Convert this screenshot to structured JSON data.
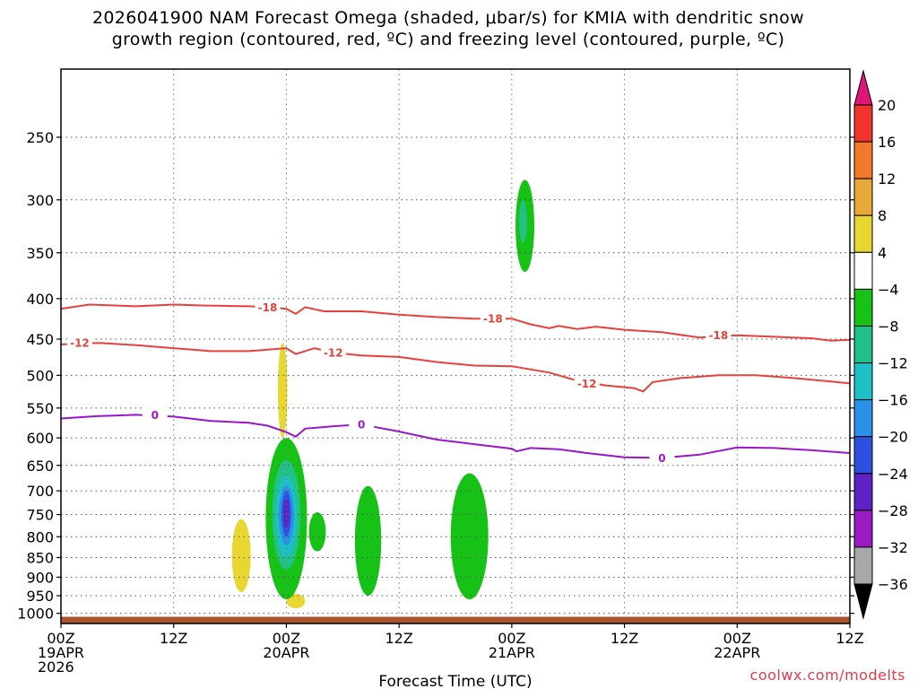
{
  "title_lines": [
    "2026041900 NAM Forecast Omega (shaded, μbar/s) for KMIA with dendritic snow",
    "growth region (contoured, red, ºC) and freezing level (contoured, purple, ºC)"
  ],
  "credit": "coolwx.com/modelts",
  "chart_data": {
    "type": "contour",
    "xlabel": "Forecast Time (UTC)",
    "x_ticks": [
      {
        "hour": 0,
        "lines": [
          "00Z",
          "19APR",
          "2026"
        ]
      },
      {
        "hour": 12,
        "lines": [
          "12Z"
        ]
      },
      {
        "hour": 24,
        "lines": [
          "00Z",
          "20APR"
        ]
      },
      {
        "hour": 36,
        "lines": [
          "12Z"
        ]
      },
      {
        "hour": 48,
        "lines": [
          "00Z",
          "21APR"
        ]
      },
      {
        "hour": 60,
        "lines": [
          "12Z"
        ]
      },
      {
        "hour": 72,
        "lines": [
          "00Z",
          "22APR"
        ]
      },
      {
        "hour": 84,
        "lines": [
          "12Z"
        ]
      }
    ],
    "xlim": [
      0,
      84
    ],
    "ylabel": "",
    "y_ticks": [
      250,
      300,
      350,
      400,
      450,
      500,
      550,
      600,
      650,
      700,
      750,
      800,
      850,
      900,
      950,
      1000
    ],
    "ylim": [
      1030,
      205
    ],
    "y_scale": "log-pressure",
    "grid": true,
    "colorbar": {
      "labels": [
        20,
        16,
        12,
        8,
        4,
        -4,
        -8,
        -12,
        -16,
        -20,
        -24,
        -28,
        -32,
        -36
      ],
      "colors": [
        "#e0157a",
        "#f0352e",
        "#f2792a",
        "#e8a93a",
        "#e8d730",
        "#ffffff",
        "#16c216",
        "#22c08a",
        "#1ec0c8",
        "#2a90ea",
        "#2f4fe0",
        "#5e22c4",
        "#9a1ac4",
        "#a8a8a8",
        "#000000"
      ]
    },
    "contours": [
      {
        "label": "-18",
        "color": "#e8403a",
        "points": [
          [
            0,
            412
          ],
          [
            3,
            407
          ],
          [
            8,
            409
          ],
          [
            12,
            407
          ],
          [
            15,
            408
          ],
          [
            20,
            409
          ],
          [
            22,
            410
          ],
          [
            24,
            412
          ],
          [
            25,
            418
          ],
          [
            26,
            410
          ],
          [
            28,
            415
          ],
          [
            32,
            415
          ],
          [
            36,
            419
          ],
          [
            40,
            422
          ],
          [
            44,
            424
          ],
          [
            48,
            424
          ],
          [
            50,
            431
          ],
          [
            52,
            436
          ],
          [
            53,
            433
          ],
          [
            55,
            437
          ],
          [
            57,
            434
          ],
          [
            60,
            438
          ],
          [
            64,
            441
          ],
          [
            68,
            448
          ],
          [
            72,
            445
          ],
          [
            76,
            447
          ],
          [
            80,
            449
          ],
          [
            82,
            452
          ],
          [
            84,
            451
          ]
        ],
        "label_at": [
          [
            22,
            410
          ],
          [
            46,
            424
          ],
          [
            70,
            445
          ]
        ]
      },
      {
        "label": "-12",
        "color": "#e8403a",
        "points": [
          [
            0,
            457
          ],
          [
            4,
            455
          ],
          [
            8,
            458
          ],
          [
            12,
            462
          ],
          [
            16,
            466
          ],
          [
            20,
            466
          ],
          [
            24,
            462
          ],
          [
            25,
            470
          ],
          [
            27,
            462
          ],
          [
            29,
            468
          ],
          [
            32,
            472
          ],
          [
            36,
            474
          ],
          [
            40,
            481
          ],
          [
            44,
            486
          ],
          [
            48,
            487
          ],
          [
            52,
            496
          ],
          [
            55,
            508
          ],
          [
            58,
            515
          ],
          [
            61,
            519
          ],
          [
            62,
            524
          ],
          [
            63,
            510
          ],
          [
            66,
            504
          ],
          [
            70,
            500
          ],
          [
            74,
            500
          ],
          [
            78,
            504
          ],
          [
            82,
            509
          ],
          [
            84,
            512
          ]
        ],
        "label_at": [
          [
            2,
            455
          ],
          [
            29,
            468
          ],
          [
            56,
            512
          ]
        ]
      },
      {
        "label": "0",
        "color": "#9a16c8",
        "points": [
          [
            0,
            567
          ],
          [
            4,
            563
          ],
          [
            8,
            561
          ],
          [
            12,
            564
          ],
          [
            16,
            571
          ],
          [
            20,
            574
          ],
          [
            22,
            579
          ],
          [
            24,
            590
          ],
          [
            25,
            598
          ],
          [
            26,
            584
          ],
          [
            29,
            580
          ],
          [
            32,
            577
          ],
          [
            36,
            589
          ],
          [
            40,
            603
          ],
          [
            44,
            611
          ],
          [
            48,
            619
          ],
          [
            48.5,
            624
          ],
          [
            50,
            618
          ],
          [
            53,
            620
          ],
          [
            56,
            627
          ],
          [
            60,
            635
          ],
          [
            64,
            636
          ],
          [
            68,
            630
          ],
          [
            72,
            617
          ],
          [
            76,
            618
          ],
          [
            80,
            622
          ],
          [
            84,
            627
          ]
        ],
        "label_at": [
          [
            10,
            561
          ],
          [
            32,
            577
          ],
          [
            64,
            636
          ]
        ]
      }
    ],
    "shaded_regions": [
      {
        "center": [
          23.6,
          520
        ],
        "rx_hours": 0.5,
        "ry_mb": [
          455,
          600
        ],
        "value": 6
      },
      {
        "center": [
          19.2,
          840
        ],
        "rx_hours": 1.0,
        "ry_mb": [
          760,
          940
        ],
        "value": 6
      },
      {
        "center": [
          25.0,
          980
        ],
        "rx_hours": 1.0,
        "ry_mb": [
          945,
          985
        ],
        "value": 6
      },
      {
        "center": [
          24.0,
          780
        ],
        "rx_hours": 2.2,
        "ry_mb": [
          600,
          960
        ],
        "value": -6
      },
      {
        "center": [
          24.0,
          740
        ],
        "rx_hours": 1.5,
        "ry_mb": [
          640,
          880
        ],
        "value": -10
      },
      {
        "center": [
          24.0,
          740
        ],
        "rx_hours": 1.1,
        "ry_mb": [
          670,
          850
        ],
        "value": -14
      },
      {
        "center": [
          24.0,
          745
        ],
        "rx_hours": 0.8,
        "ry_mb": [
          690,
          820
        ],
        "value": -18
      },
      {
        "center": [
          24.0,
          745
        ],
        "rx_hours": 0.5,
        "ry_mb": [
          700,
          800
        ],
        "value": -22
      },
      {
        "center": [
          24.0,
          745
        ],
        "rx_hours": 0.3,
        "ry_mb": [
          715,
          780
        ],
        "value": -26
      },
      {
        "center": [
          27.3,
          780
        ],
        "rx_hours": 0.9,
        "ry_mb": [
          745,
          835
        ],
        "value": -6
      },
      {
        "center": [
          32.7,
          830
        ],
        "rx_hours": 1.4,
        "ry_mb": [
          690,
          950
        ],
        "value": -6
      },
      {
        "center": [
          43.5,
          820
        ],
        "rx_hours": 2.0,
        "ry_mb": [
          665,
          960
        ],
        "value": -6
      },
      {
        "center": [
          49.4,
          320
        ],
        "rx_hours": 1.0,
        "ry_mb": [
          283,
          370
        ],
        "value": -6
      },
      {
        "center": [
          49.2,
          318
        ],
        "rx_hours": 0.4,
        "ry_mb": [
          300,
          340
        ],
        "value": -10
      }
    ],
    "ground": {
      "color": "#a8552d",
      "top_mb": 1010
    }
  }
}
